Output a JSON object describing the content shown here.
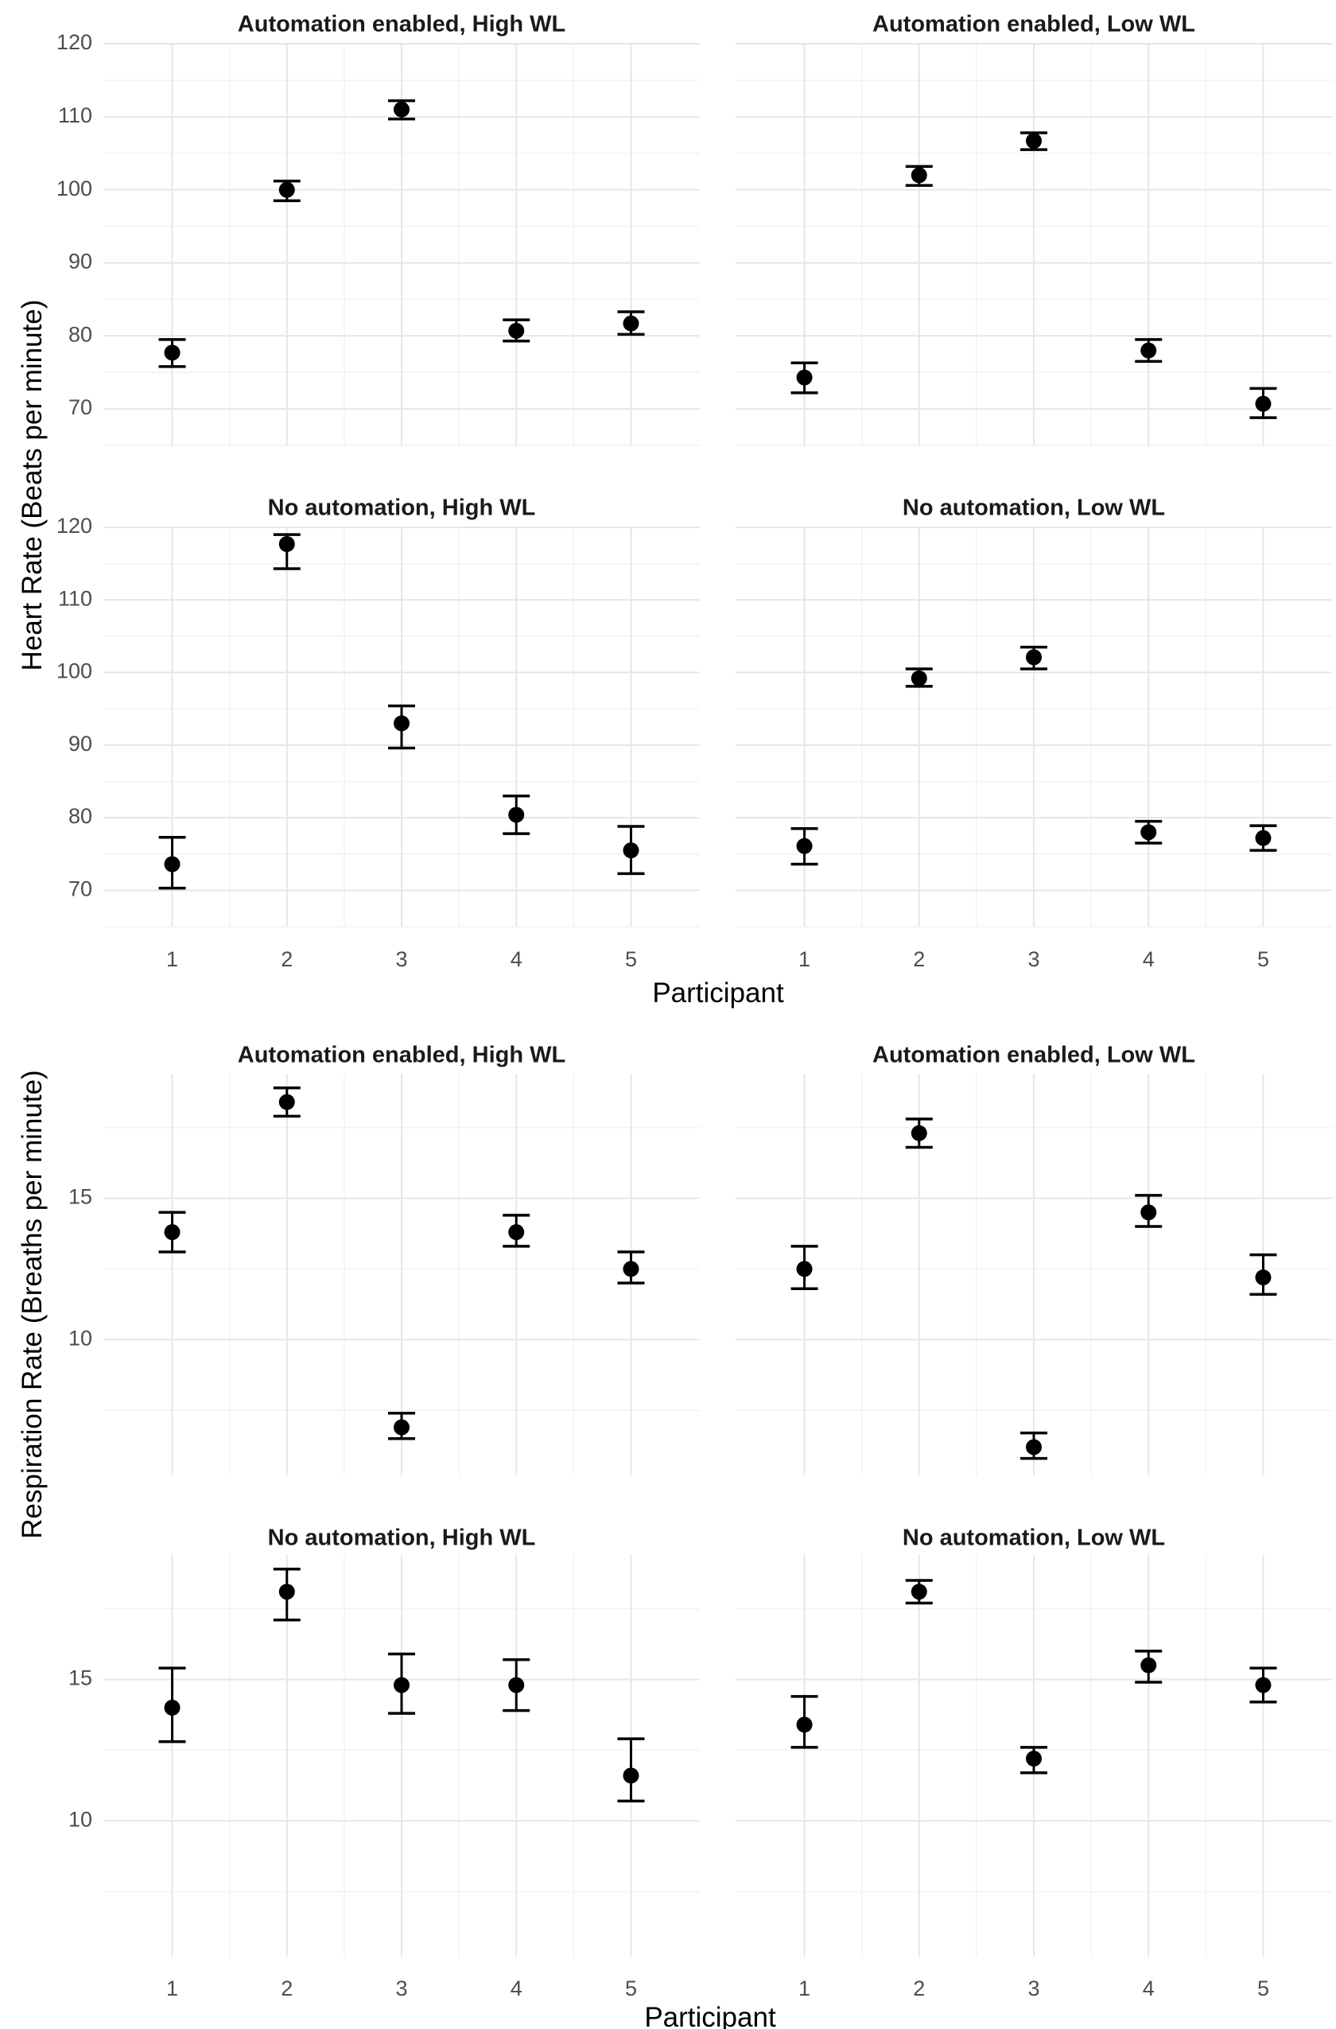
{
  "chart_data": [
    {
      "type": "scatter",
      "figure": "heart-rate",
      "ylabel": "Heart Rate  (Beats per minute)",
      "xlabel": "Participant",
      "x": [
        1,
        2,
        3,
        4,
        5
      ],
      "x_tick_labels": [
        "1",
        "2",
        "3",
        "4",
        "5"
      ],
      "y_ticks": [
        70,
        80,
        90,
        100,
        110,
        120
      ],
      "y_tick_labels": [
        "70",
        "80",
        "90",
        "100",
        "110",
        "120"
      ],
      "ylim": [
        65,
        120
      ],
      "grid": true,
      "error_bars": true,
      "panels": [
        {
          "title": "Automation enabled, High WL",
          "values": [
            77.7,
            100.0,
            111.0,
            80.7,
            81.7
          ],
          "lower": [
            75.8,
            98.5,
            109.7,
            79.3,
            80.2
          ],
          "upper": [
            79.5,
            101.2,
            112.2,
            82.2,
            83.3
          ]
        },
        {
          "title": "Automation enabled, Low WL",
          "values": [
            74.3,
            102.0,
            106.7,
            78.0,
            70.7
          ],
          "lower": [
            72.2,
            100.6,
            105.5,
            76.5,
            68.8
          ],
          "upper": [
            76.3,
            103.2,
            107.8,
            79.5,
            72.8
          ]
        },
        {
          "title": "No automation, High WL",
          "values": [
            73.6,
            117.7,
            93.0,
            80.4,
            75.5
          ],
          "lower": [
            70.3,
            114.3,
            89.6,
            77.8,
            72.3
          ],
          "upper": [
            77.3,
            119.0,
            95.4,
            83.0,
            78.8
          ]
        },
        {
          "title": "No automation, Low WL",
          "values": [
            76.1,
            99.2,
            102.1,
            78.0,
            77.2
          ],
          "lower": [
            73.6,
            98.1,
            100.5,
            76.5,
            75.5
          ],
          "upper": [
            78.5,
            100.5,
            103.5,
            79.5,
            78.9
          ]
        }
      ]
    },
    {
      "type": "scatter",
      "figure": "respiration-rate",
      "ylabel": "Respiration Rate  (Breaths per minute)",
      "xlabel": "Participant",
      "x": [
        1,
        2,
        3,
        4,
        5
      ],
      "x_tick_labels": [
        "1",
        "2",
        "3",
        "4",
        "5"
      ],
      "y_ticks": [
        10,
        15
      ],
      "y_tick_labels": [
        "10",
        "15"
      ],
      "ylim": [
        5.2,
        19.4
      ],
      "grid": true,
      "error_bars": true,
      "panels": [
        {
          "title": "Automation enabled, High WL",
          "values": [
            13.8,
            18.4,
            6.9,
            13.8,
            12.5
          ],
          "lower": [
            13.1,
            17.9,
            6.5,
            13.3,
            12.0
          ],
          "upper": [
            14.5,
            18.9,
            7.4,
            14.4,
            13.1
          ]
        },
        {
          "title": "Automation enabled, Low WL",
          "values": [
            12.5,
            17.3,
            6.2,
            14.5,
            12.2
          ],
          "lower": [
            11.8,
            16.8,
            5.8,
            14.0,
            11.6
          ],
          "upper": [
            13.3,
            17.8,
            6.7,
            15.1,
            13.0
          ]
        },
        {
          "title": "No automation, High WL",
          "values": [
            14.0,
            18.1,
            14.8,
            14.8,
            11.6
          ],
          "lower": [
            12.8,
            17.1,
            13.8,
            13.9,
            10.7
          ],
          "upper": [
            15.4,
            18.9,
            15.9,
            15.7,
            12.9
          ]
        },
        {
          "title": "No automation, Low WL",
          "values": [
            13.4,
            18.1,
            12.2,
            15.5,
            14.8
          ],
          "lower": [
            12.6,
            17.7,
            11.7,
            14.9,
            14.2
          ],
          "upper": [
            14.4,
            18.5,
            12.6,
            16.0,
            15.4
          ]
        }
      ]
    }
  ]
}
